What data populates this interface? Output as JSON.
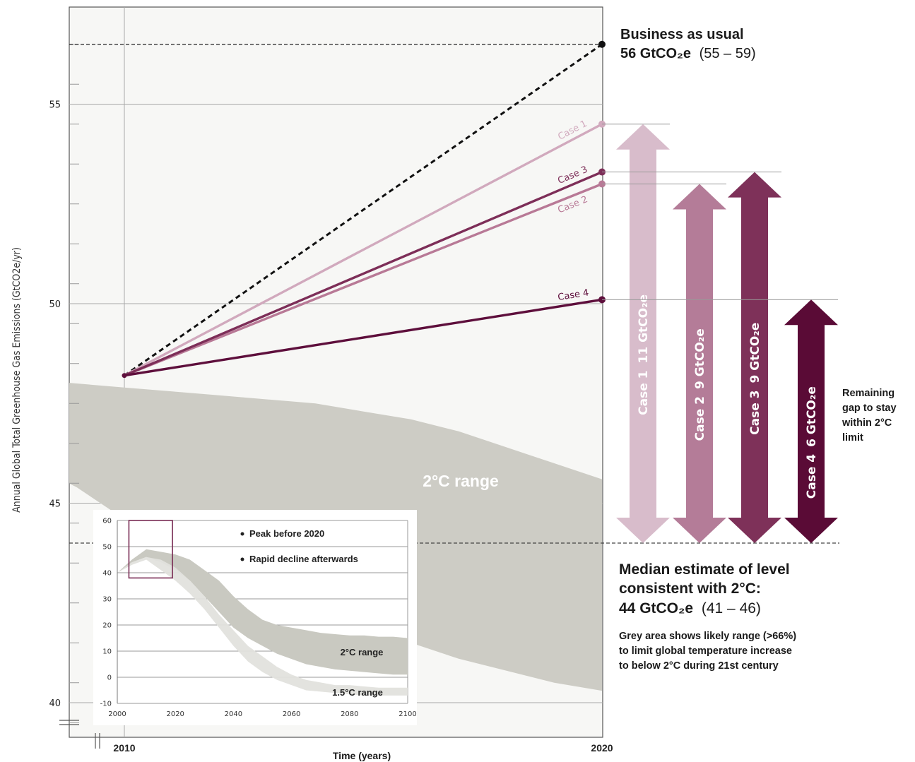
{
  "chart_data": [
    {
      "type": "line",
      "ylabel": "Annual Global Total Greenhouse Gas Emissions (GtCO2e/yr)",
      "xlabel": "Time (years)",
      "x_ticks": [
        "2010",
        "2020"
      ],
      "y_ticks": [
        40,
        45,
        50,
        55
      ],
      "ylim": [
        39.2,
        57.2
      ],
      "xlim": [
        2010,
        2020
      ],
      "grid": true,
      "start": {
        "x": 2010,
        "y": 48.2
      },
      "series": [
        {
          "name": "Business as usual",
          "x": [
            2010,
            2020
          ],
          "y": [
            48.2,
            56.5
          ],
          "color": "#111111",
          "dashed": true
        },
        {
          "name": "Case 1",
          "x": [
            2010,
            2020
          ],
          "y": [
            48.2,
            54.5
          ],
          "color": "#d1a9bd"
        },
        {
          "name": "Case 2",
          "x": [
            2010,
            2020
          ],
          "y": [
            48.2,
            53.0
          ],
          "color": "#b87996"
        },
        {
          "name": "Case 3",
          "x": [
            2010,
            2020
          ],
          "y": [
            48.2,
            53.3
          ],
          "color": "#7d2e58"
        },
        {
          "name": "Case 4",
          "x": [
            2010,
            2020
          ],
          "y": [
            48.2,
            50.1
          ],
          "color": "#5e0f3c"
        }
      ],
      "range_band": {
        "label": "2°C range",
        "x": [
          2003.0,
          2004.0,
          2005.0,
          2006.0,
          2007.0,
          2008.0,
          2009.0,
          2010.0,
          2011.0,
          2012.0,
          2013.0,
          2014.0,
          2015.0,
          2016.0,
          2017.0,
          2018.0,
          2019.0,
          2020.0
        ],
        "upper": [
          47.3,
          47.6,
          47.9,
          48.1,
          48.2,
          48.1,
          48.0,
          47.9,
          47.8,
          47.7,
          47.6,
          47.5,
          47.3,
          47.1,
          46.8,
          46.4,
          46.0,
          45.6
        ],
        "lower": [
          46.1,
          46.2,
          46.3,
          46.4,
          46.3,
          46.0,
          45.4,
          44.6,
          43.8,
          43.1,
          42.6,
          42.2,
          41.8,
          41.5,
          41.1,
          40.8,
          40.5,
          40.3
        ]
      },
      "median_2c_level": 44,
      "annotations": {
        "bau_title": "Business as usual",
        "bau_value": "56 GtCO₂e",
        "bau_range": "(55 – 59)",
        "median_line1": "Median estimate of level",
        "median_line2": "consistent with 2°C:",
        "median_value": "44 GtCO₂e",
        "median_range": "(41 – 46)",
        "grey_note": [
          "Grey area shows likely range (>66%)",
          "to limit global temperature increase",
          "to below 2°C during 21st century"
        ],
        "gap_note": [
          "Remaining",
          "gap to stay",
          "within 2°C",
          "limit"
        ]
      },
      "gap_arrows": [
        {
          "case": "Case 1",
          "gap": "11 GtCO₂e",
          "top": 54.5,
          "bottom": 44,
          "color": "#d8bccb"
        },
        {
          "case": "Case 2",
          "gap": "9 GtCO₂e",
          "top": 53.0,
          "bottom": 44,
          "color": "#b47c98"
        },
        {
          "case": "Case 3",
          "gap": "9 GtCO₂e",
          "top": 53.3,
          "bottom": 44,
          "color": "#7e3159"
        },
        {
          "case": "Case 4",
          "gap": "6 GtCO₂e",
          "top": 50.1,
          "bottom": 44,
          "color": "#5a0b36"
        }
      ]
    },
    {
      "type": "area",
      "xlim": [
        2000,
        2100
      ],
      "ylim": [
        -10,
        60
      ],
      "x_ticks": [
        2000,
        2020,
        2040,
        2060,
        2080,
        2100
      ],
      "y_ticks": [
        -10,
        0,
        10,
        20,
        30,
        40,
        50,
        60
      ],
      "bullets": [
        "Peak before 2020",
        "Rapid decline afterwards"
      ],
      "highlight_box": {
        "x": [
          2004,
          2019
        ],
        "y": [
          38,
          60
        ]
      },
      "bands": [
        {
          "name": "2°C range",
          "color": "#c9c9c1",
          "x": [
            2000,
            2005,
            2010,
            2015,
            2020,
            2025,
            2030,
            2035,
            2040,
            2045,
            2050,
            2055,
            2060,
            2065,
            2070,
            2075,
            2080,
            2085,
            2090,
            2095,
            2100
          ],
          "upper": [
            40,
            45,
            49,
            48,
            47,
            45,
            41,
            37,
            31,
            26,
            22,
            20,
            19,
            18,
            17,
            16.5,
            16,
            16,
            15.5,
            15.5,
            15
          ],
          "lower": [
            40,
            44,
            46,
            44,
            41,
            37,
            31,
            25,
            19,
            15,
            12,
            9,
            7,
            5,
            4,
            3,
            2.5,
            2,
            1.5,
            1,
            1
          ]
        },
        {
          "name": "1.5°C range",
          "color": "#e1e1dd",
          "x": [
            2000,
            2005,
            2010,
            2015,
            2020,
            2025,
            2030,
            2035,
            2040,
            2045,
            2050,
            2055,
            2060,
            2065,
            2070,
            2075,
            2080,
            2085,
            2090,
            2095,
            2100
          ],
          "upper": [
            40,
            44,
            46,
            45,
            42,
            37,
            31,
            24,
            18,
            12,
            8,
            4,
            1,
            -1,
            -2,
            -3,
            -3,
            -3.5,
            -4,
            -4,
            -4
          ],
          "lower": [
            40,
            43,
            45,
            41,
            37,
            32,
            26,
            19,
            12,
            6,
            2,
            -1,
            -3,
            -5,
            -5.5,
            -6,
            -6.5,
            -7,
            -7,
            -7,
            -7
          ]
        }
      ]
    }
  ]
}
